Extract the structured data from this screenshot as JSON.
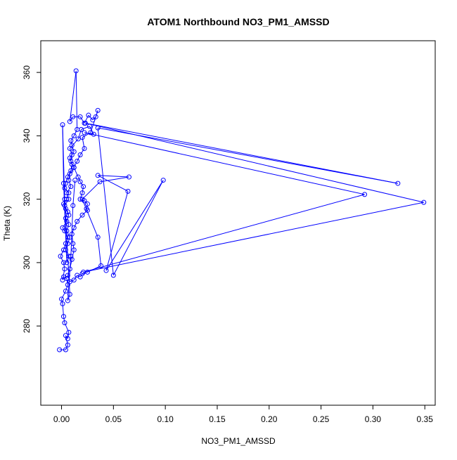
{
  "chart_data": {
    "type": "line",
    "title": "ATOM1 Northbound NO3_PM1_AMSSD",
    "xlabel": "NO3_PM1_AMSSD",
    "ylabel": "Theta (K)",
    "xlim": [
      -0.02,
      0.36
    ],
    "ylim": [
      255,
      370
    ],
    "x_ticks": [
      "0.00",
      "0.05",
      "0.10",
      "0.15",
      "0.20",
      "0.25",
      "0.30",
      "0.35"
    ],
    "x_tick_values": [
      0,
      0.05,
      0.1,
      0.15,
      0.2,
      0.25,
      0.3,
      0.35
    ],
    "y_ticks": [
      "280",
      "300",
      "320",
      "340",
      "360"
    ],
    "y_tick_values": [
      280,
      300,
      320,
      340,
      360
    ],
    "grid": false,
    "legend": "none",
    "series_color": "#0000ff",
    "series": [
      {
        "marker": "open-circle",
        "points": [
          [
            -0.002,
            272.5
          ],
          [
            0.004,
            272.5
          ],
          [
            0.006,
            274
          ],
          [
            0.004,
            277
          ],
          [
            0.006,
            276
          ],
          [
            0.007,
            278
          ],
          [
            0.003,
            281
          ],
          [
            0.002,
            283
          ],
          [
            0.001,
            287
          ],
          [
            0.0,
            288.5
          ],
          [
            0.004,
            291
          ],
          [
            0.006,
            293
          ],
          [
            0.005,
            295
          ],
          [
            0.002,
            295.5
          ],
          [
            0.001,
            294.5
          ],
          [
            0.003,
            298
          ],
          [
            0.002,
            300
          ],
          [
            -0.001,
            302
          ],
          [
            0.002,
            304
          ],
          [
            0.004,
            306
          ],
          [
            0.006,
            308
          ],
          [
            0.003,
            310
          ],
          [
            0.001,
            311
          ],
          [
            0.005,
            313
          ],
          [
            0.007,
            315
          ],
          [
            0.004,
            317
          ],
          [
            0.002,
            318.5
          ],
          [
            0.005,
            320
          ],
          [
            0.007,
            322
          ],
          [
            0.003,
            323.5
          ],
          [
            0.004,
            325
          ],
          [
            0.006,
            327
          ],
          [
            0.009,
            329
          ],
          [
            0.01,
            331
          ],
          [
            0.008,
            333
          ],
          [
            0.012,
            335
          ],
          [
            0.01,
            337
          ],
          [
            0.009,
            338.5
          ],
          [
            0.012,
            340
          ],
          [
            0.015,
            342
          ],
          [
            0.014,
            360.5
          ],
          [
            0.008,
            344.5
          ],
          [
            0.011,
            346
          ],
          [
            0.018,
            346
          ],
          [
            0.022,
            344
          ],
          [
            0.026,
            346.5
          ],
          [
            0.03,
            345
          ],
          [
            0.033,
            346
          ],
          [
            0.035,
            348
          ],
          [
            0.028,
            341
          ],
          [
            0.02,
            339.5
          ],
          [
            0.022,
            336
          ],
          [
            0.018,
            334
          ],
          [
            0.015,
            332
          ],
          [
            0.012,
            330
          ],
          [
            0.016,
            327
          ],
          [
            0.018,
            325.5
          ],
          [
            0.021,
            324
          ],
          [
            0.02,
            322
          ],
          [
            0.018,
            320
          ],
          [
            0.022,
            319.5
          ],
          [
            0.025,
            318.5
          ],
          [
            0.024,
            317
          ],
          [
            0.025,
            316.5
          ],
          [
            0.02,
            315
          ],
          [
            0.015,
            313
          ],
          [
            0.012,
            311
          ],
          [
            0.01,
            309
          ],
          [
            0.011,
            306
          ],
          [
            0.012,
            304
          ],
          [
            0.01,
            301
          ],
          [
            0.008,
            298
          ],
          [
            0.006,
            296
          ],
          [
            0.008,
            294
          ],
          [
            0.012,
            294.5
          ],
          [
            0.015,
            296
          ],
          [
            0.018,
            295.5
          ],
          [
            0.02,
            296.5
          ],
          [
            0.025,
            297
          ],
          [
            0.038,
            299
          ],
          [
            0.035,
            308
          ],
          [
            0.02,
            320
          ],
          [
            0.037,
            325.5
          ],
          [
            0.065,
            327
          ],
          [
            0.035,
            327.5
          ],
          [
            0.064,
            322.5
          ],
          [
            0.043,
            297.5
          ],
          [
            0.098,
            326
          ],
          [
            0.05,
            296
          ],
          [
            0.035,
            342.5
          ],
          [
            0.324,
            325
          ],
          [
            0.023,
            344
          ],
          [
            0.349,
            319
          ],
          [
            0.021,
            297
          ],
          [
            0.292,
            321.5
          ],
          [
            0.022,
            341
          ],
          [
            0.031,
            340.5
          ],
          [
            0.027,
            343
          ],
          [
            0.019,
            342
          ],
          [
            0.016,
            339
          ],
          [
            0.008,
            336
          ],
          [
            0.01,
            334
          ],
          [
            0.009,
            332
          ],
          [
            0.012,
            330
          ],
          [
            0.008,
            328
          ],
          [
            0.007,
            326
          ],
          [
            0.009,
            324
          ],
          [
            0.005,
            322
          ],
          [
            0.007,
            320
          ],
          [
            0.003,
            318
          ],
          [
            0.006,
            316
          ],
          [
            0.004,
            314
          ],
          [
            0.007,
            312
          ],
          [
            0.005,
            310
          ],
          [
            0.008,
            308
          ],
          [
            0.006,
            306
          ],
          [
            0.004,
            304
          ],
          [
            0.007,
            302
          ],
          [
            0.005,
            300
          ],
          [
            0.002,
            325
          ],
          [
            0.001,
            343.5
          ],
          [
            0.003,
            320
          ],
          [
            0.008,
            290
          ],
          [
            0.006,
            288
          ],
          [
            0.009,
            302
          ],
          [
            0.011,
            318
          ],
          [
            0.013,
            326
          ]
        ]
      }
    ]
  }
}
